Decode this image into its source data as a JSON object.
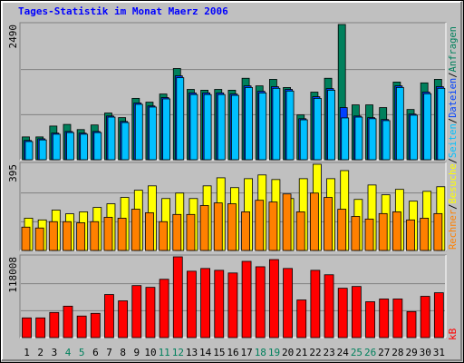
{
  "chart_data": [
    {
      "type": "bar",
      "title": "Tages-Statistik im Monat Maerz 2006",
      "ylim": [
        0,
        2490
      ],
      "yticks": [
        2490
      ],
      "series": [
        {
          "name": "Anfragen",
          "color": "#00805c",
          "values": [
            420,
            420,
            620,
            650,
            555,
            640,
            860,
            775,
            1130,
            1060,
            1210,
            1680,
            1295,
            1280,
            1295,
            1280,
            1500,
            1360,
            1480,
            1330,
            825,
            1245,
            1500,
            2490,
            1010,
            1010,
            960,
            1430,
            925,
            1415,
            1480
          ]
        },
        {
          "name": "Dateien",
          "color": "#0040ff",
          "values": [
            355,
            385,
            490,
            520,
            490,
            520,
            805,
            705,
            1045,
            990,
            1145,
            1545,
            1230,
            1230,
            1230,
            1210,
            1360,
            1260,
            1345,
            1295,
            755,
            1160,
            1310,
            960,
            805,
            775,
            740,
            1360,
            840,
            1245,
            1345
          ]
        },
        {
          "name": "Seiten",
          "color": "#00c0ff",
          "values": [
            335,
            365,
            470,
            500,
            470,
            500,
            785,
            685,
            1020,
            970,
            1120,
            1510,
            1200,
            1200,
            1200,
            1185,
            1330,
            1230,
            1315,
            1265,
            735,
            1130,
            1280,
            770,
            785,
            755,
            720,
            1330,
            820,
            1215,
            1315
          ]
        }
      ]
    },
    {
      "type": "bar",
      "ylim": [
        0,
        395
      ],
      "yticks": [
        395
      ],
      "series": [
        {
          "name": "Besuche",
          "color": "#ffff00",
          "values": [
            148,
            140,
            185,
            168,
            177,
            197,
            214,
            243,
            276,
            296,
            238,
            263,
            238,
            296,
            333,
            288,
            329,
            346,
            325,
            238,
            329,
            395,
            329,
            366,
            234,
            300,
            255,
            280,
            226,
            271,
            292
          ]
        },
        {
          "name": "Rechner",
          "color": "#ff8000",
          "values": [
            107,
            103,
            132,
            132,
            127,
            132,
            152,
            148,
            189,
            173,
            132,
            165,
            165,
            206,
            218,
            214,
            177,
            230,
            222,
            259,
            177,
            263,
            243,
            189,
            156,
            144,
            169,
            177,
            140,
            148,
            169
          ]
        }
      ]
    },
    {
      "type": "bar",
      "ylim": [
        0,
        118008
      ],
      "yticks": [
        118008
      ],
      "categories": [
        "1",
        "2",
        "3",
        "4",
        "5",
        "6",
        "7",
        "8",
        "9",
        "10",
        "11",
        "12",
        "13",
        "14",
        "15",
        "16",
        "17",
        "18",
        "19",
        "20",
        "21",
        "22",
        "23",
        "24",
        "25",
        "26",
        "27",
        "28",
        "29",
        "30",
        "31"
      ],
      "category_colors": [
        "#000000",
        "#000000",
        "#000000",
        "#00805c",
        "#00805c",
        "#000000",
        "#000000",
        "#000000",
        "#000000",
        "#000000",
        "#00805c",
        "#00805c",
        "#000000",
        "#000000",
        "#000000",
        "#000000",
        "#000000",
        "#00805c",
        "#00805c",
        "#000000",
        "#000000",
        "#000000",
        "#000000",
        "#000000",
        "#00805c",
        "#00805c",
        "#000000",
        "#000000",
        "#000000",
        "#000000",
        "#000000"
      ],
      "series": [
        {
          "name": "kB",
          "color": "#ff0000",
          "values": [
            28800,
            28800,
            36700,
            45900,
            31500,
            35400,
            62900,
            53700,
            76000,
            73400,
            85200,
            118008,
            97000,
            101000,
            98300,
            94400,
            111400,
            103500,
            114000,
            101000,
            55000,
            98300,
            91800,
            72100,
            74700,
            52400,
            56400,
            56400,
            38000,
            60300,
            65500
          ]
        }
      ]
    }
  ],
  "legend_separator": "/"
}
